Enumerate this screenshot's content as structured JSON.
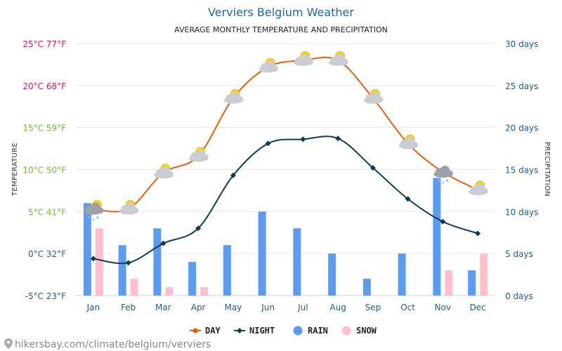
{
  "chart_data": {
    "type": "bar+line",
    "title": "Verviers Belgium Weather",
    "subtitle": "AVERAGE MONTHLY TEMPERATURE AND PRECIPITATION",
    "categories": [
      "Jan",
      "Feb",
      "Mar",
      "Apr",
      "May",
      "Jun",
      "Jul",
      "Aug",
      "Sep",
      "Oct",
      "Nov",
      "Dec"
    ],
    "y_left": {
      "label": "TEMPERATURE",
      "range_c": [
        -5,
        25
      ],
      "ticks": [
        {
          "value": 25,
          "label": "25°C 77°F",
          "color": "#e0105c"
        },
        {
          "value": 20,
          "label": "20°C 68°F",
          "color": "#e0105c"
        },
        {
          "value": 15,
          "label": "15°C 59°F",
          "color": "#6abf1e"
        },
        {
          "value": 10,
          "label": "10°C 50°F",
          "color": "#6abf1e"
        },
        {
          "value": 5,
          "label": "5°C 41°F",
          "color": "#6abf1e"
        },
        {
          "value": 0,
          "label": "0°C 32°F",
          "color": "#1a5f8a"
        },
        {
          "value": -5,
          "label": "-5°C 23°F",
          "color": "#1a5f8a"
        }
      ]
    },
    "y_right": {
      "label": "PRECIPITATION",
      "range_days": [
        0,
        30
      ],
      "ticks": [
        {
          "value": 30,
          "label": "30 days"
        },
        {
          "value": 25,
          "label": "25 days"
        },
        {
          "value": 20,
          "label": "20 days"
        },
        {
          "value": 15,
          "label": "15 days"
        },
        {
          "value": 10,
          "label": "10 days"
        },
        {
          "value": 5,
          "label": "5 days"
        },
        {
          "value": 0,
          "label": "0 days"
        }
      ]
    },
    "series": [
      {
        "name": "DAY",
        "kind": "line",
        "axis": "temperature",
        "color": "#f05a0a",
        "values": [
          5.3,
          5.3,
          9.6,
          11.6,
          18.5,
          22.2,
          23.0,
          23.0,
          18.5,
          13.1,
          9.7,
          7.6
        ]
      },
      {
        "name": "NIGHT",
        "kind": "line",
        "axis": "temperature",
        "color": "#0f3b52",
        "values": [
          -0.6,
          -1.1,
          1.2,
          3.0,
          9.3,
          13.1,
          13.6,
          13.7,
          10.2,
          6.5,
          3.8,
          2.4
        ]
      },
      {
        "name": "RAIN",
        "kind": "bar",
        "axis": "precipitation",
        "color": "#5b9cf2",
        "values": [
          11,
          6,
          8,
          4,
          6,
          10,
          8,
          5,
          2,
          5,
          14,
          3
        ]
      },
      {
        "name": "SNOW",
        "kind": "bar",
        "axis": "precipitation",
        "color": "#ffc0cb",
        "values": [
          8,
          2,
          1,
          1,
          0,
          0,
          0,
          0,
          0,
          0,
          3,
          5
        ]
      }
    ],
    "weather_icons": [
      "snow-cloud-icon",
      "sun-cloud-icon",
      "sun-cloud-icon",
      "sun-cloud-icon",
      "sun-cloud-icon",
      "sun-cloud-icon",
      "sun-cloud-icon",
      "sun-cloud-icon",
      "sun-cloud-icon",
      "sun-cloud-icon",
      "snow-cloud-icon",
      "sun-cloud-icon"
    ],
    "grid": true,
    "legend_position": "bottom-center"
  },
  "source_text": "hikersbay.com/climate/belgium/verviers"
}
